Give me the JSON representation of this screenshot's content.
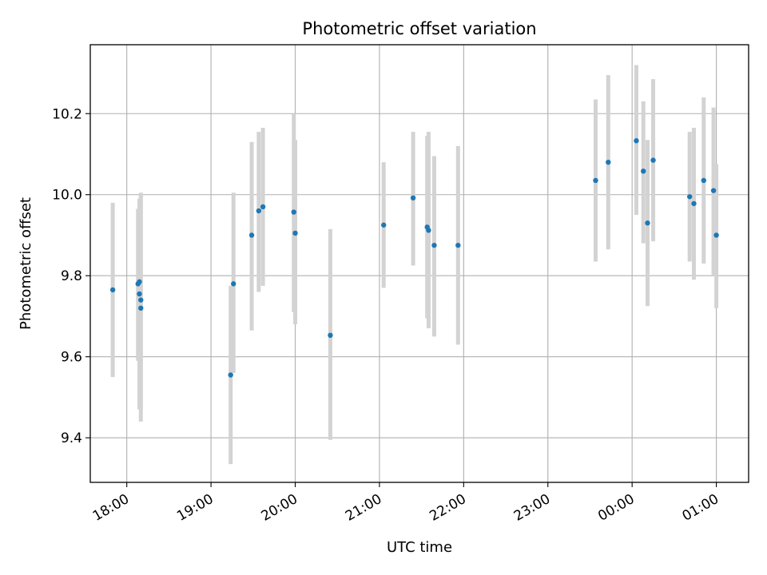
{
  "chart_data": {
    "type": "scatter",
    "title": "Photometric offset variation",
    "xlabel": "UTC time",
    "ylabel": "Photometric offset",
    "x_unit": "UTC date-time",
    "xlim": [
      "2024-01-01T17:34",
      "2024-01-02T01:23"
    ],
    "ylim": [
      9.29,
      10.37
    ],
    "x_ticks": [
      {
        "x": "2024-01-01T18:00",
        "label": "18:00"
      },
      {
        "x": "2024-01-01T19:00",
        "label": "19:00"
      },
      {
        "x": "2024-01-01T20:00",
        "label": "20:00"
      },
      {
        "x": "2024-01-01T21:00",
        "label": "21:00"
      },
      {
        "x": "2024-01-01T22:00",
        "label": "22:00"
      },
      {
        "x": "2024-01-01T23:00",
        "label": "23:00"
      },
      {
        "x": "2024-01-02T00:00",
        "label": "00:00"
      },
      {
        "x": "2024-01-02T01:00",
        "label": "01:00"
      }
    ],
    "y_ticks": [
      {
        "y": 9.4,
        "label": "9.4"
      },
      {
        "y": 9.6,
        "label": "9.6"
      },
      {
        "y": 9.8,
        "label": "9.8"
      },
      {
        "y": 10.0,
        "label": "10.0"
      },
      {
        "y": 10.2,
        "label": "10.2"
      }
    ],
    "grid": true,
    "marker_color": "#1f77b4",
    "errorbar_color": "#d3d3d3",
    "points": [
      {
        "x": "2024-01-01T17:50",
        "y": 9.765,
        "ylo": 9.55,
        "yhi": 9.98
      },
      {
        "x": "2024-01-01T18:08",
        "y": 9.78,
        "ylo": 9.59,
        "yhi": 9.965
      },
      {
        "x": "2024-01-01T18:09",
        "y": 9.785,
        "ylo": 9.53,
        "yhi": 9.975
      },
      {
        "x": "2024-01-01T18:09",
        "y": 9.755,
        "ylo": 9.47,
        "yhi": 9.99
      },
      {
        "x": "2024-01-01T18:10",
        "y": 9.74,
        "ylo": 9.47,
        "yhi": 10.0
      },
      {
        "x": "2024-01-01T18:10",
        "y": 9.72,
        "ylo": 9.44,
        "yhi": 10.005
      },
      {
        "x": "2024-01-01T19:14",
        "y": 9.555,
        "ylo": 9.335,
        "yhi": 9.775
      },
      {
        "x": "2024-01-01T19:16",
        "y": 9.78,
        "ylo": 9.56,
        "yhi": 10.005
      },
      {
        "x": "2024-01-01T19:29",
        "y": 9.9,
        "ylo": 9.665,
        "yhi": 10.13
      },
      {
        "x": "2024-01-01T19:34",
        "y": 9.96,
        "ylo": 9.76,
        "yhi": 10.155
      },
      {
        "x": "2024-01-01T19:37",
        "y": 9.97,
        "ylo": 9.775,
        "yhi": 10.165
      },
      {
        "x": "2024-01-01T19:59",
        "y": 9.957,
        "ylo": 9.71,
        "yhi": 10.2
      },
      {
        "x": "2024-01-01T20:00",
        "y": 9.905,
        "ylo": 9.68,
        "yhi": 10.135
      },
      {
        "x": "2024-01-01T20:25",
        "y": 9.653,
        "ylo": 9.395,
        "yhi": 9.915
      },
      {
        "x": "2024-01-01T21:03",
        "y": 9.925,
        "ylo": 9.77,
        "yhi": 10.08
      },
      {
        "x": "2024-01-01T21:24",
        "y": 9.992,
        "ylo": 9.825,
        "yhi": 10.155
      },
      {
        "x": "2024-01-01T21:34",
        "y": 9.92,
        "ylo": 9.695,
        "yhi": 10.145
      },
      {
        "x": "2024-01-01T21:35",
        "y": 9.912,
        "ylo": 9.67,
        "yhi": 10.155
      },
      {
        "x": "2024-01-01T21:39",
        "y": 9.875,
        "ylo": 9.65,
        "yhi": 10.095
      },
      {
        "x": "2024-01-01T21:56",
        "y": 9.875,
        "ylo": 9.63,
        "yhi": 10.12
      },
      {
        "x": "2024-01-01T23:34",
        "y": 10.035,
        "ylo": 9.835,
        "yhi": 10.235
      },
      {
        "x": "2024-01-01T23:43",
        "y": 10.08,
        "ylo": 9.865,
        "yhi": 10.295
      },
      {
        "x": "2024-01-02T00:03",
        "y": 10.133,
        "ylo": 9.95,
        "yhi": 10.32
      },
      {
        "x": "2024-01-02T00:08",
        "y": 10.058,
        "ylo": 9.88,
        "yhi": 10.23
      },
      {
        "x": "2024-01-02T00:11",
        "y": 9.93,
        "ylo": 9.725,
        "yhi": 10.135
      },
      {
        "x": "2024-01-02T00:15",
        "y": 10.085,
        "ylo": 9.885,
        "yhi": 10.285
      },
      {
        "x": "2024-01-02T00:41",
        "y": 9.995,
        "ylo": 9.835,
        "yhi": 10.155
      },
      {
        "x": "2024-01-02T00:44",
        "y": 9.978,
        "ylo": 9.79,
        "yhi": 10.165
      },
      {
        "x": "2024-01-02T00:51",
        "y": 10.035,
        "ylo": 9.83,
        "yhi": 10.24
      },
      {
        "x": "2024-01-02T00:58",
        "y": 10.01,
        "ylo": 9.8,
        "yhi": 10.215
      },
      {
        "x": "2024-01-02T01:00",
        "y": 9.9,
        "ylo": 9.72,
        "yhi": 10.075
      }
    ]
  }
}
